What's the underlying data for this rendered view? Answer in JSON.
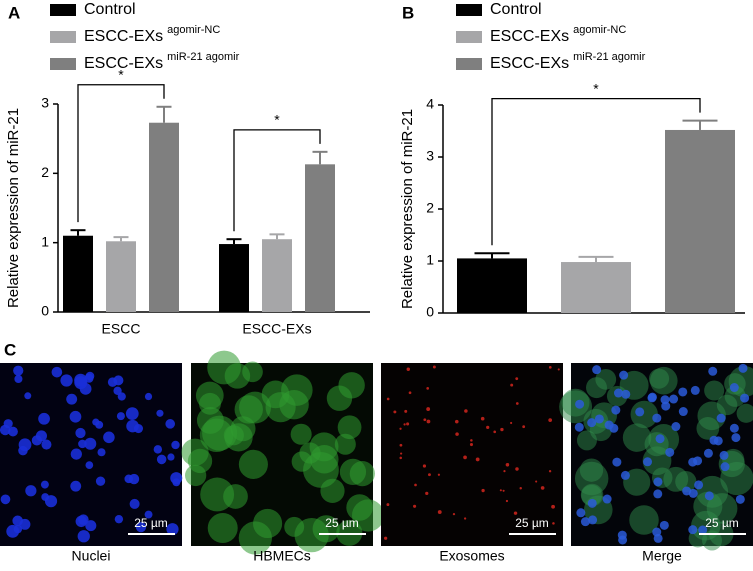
{
  "chart_data": [
    {
      "type": "bar",
      "panel": "A",
      "ylabel": "Relative expression of miR-21",
      "categories": [
        "ESCC",
        "ESCC-EXs"
      ],
      "series": [
        {
          "name": "Control",
          "color": "#000000",
          "values": [
            1.1,
            0.98
          ],
          "errors": [
            0.08,
            0.07
          ]
        },
        {
          "name": "ESCC-EXs",
          "superscript": "agomir-NC",
          "color": "#a6a6a8",
          "values": [
            1.02,
            1.05
          ],
          "errors": [
            0.06,
            0.07
          ]
        },
        {
          "name": "ESCC-EXs",
          "superscript": "miR-21 agomir",
          "color": "#7f7f7f",
          "values": [
            2.73,
            2.13
          ],
          "errors": [
            0.23,
            0.18
          ]
        }
      ],
      "ylim": [
        0,
        3
      ],
      "yticks": [
        0,
        1,
        2,
        3
      ],
      "annotations": [
        {
          "text": "*",
          "category": 0
        },
        {
          "text": "*",
          "category": 1
        }
      ]
    },
    {
      "type": "bar",
      "panel": "B",
      "ylabel": "Relative expression of miR-21",
      "categories": [
        null
      ],
      "series": [
        {
          "name": "Control",
          "color": "#000000",
          "values": [
            1.05
          ],
          "errors": [
            0.1
          ]
        },
        {
          "name": "ESCC-EXs",
          "superscript": "agomir-NC",
          "color": "#a6a6a8",
          "values": [
            0.98
          ],
          "errors": [
            0.1
          ]
        },
        {
          "name": "ESCC-EXs",
          "superscript": "miR-21 agomir",
          "color": "#7f7f7f",
          "values": [
            3.52
          ],
          "errors": [
            0.18
          ]
        }
      ],
      "ylim": [
        0,
        4
      ],
      "yticks": [
        0,
        1,
        2,
        3,
        4
      ],
      "annotations": [
        {
          "text": "*",
          "category": 0
        }
      ]
    }
  ],
  "panel_c": {
    "label": "C",
    "images": [
      {
        "caption": "Nuclei",
        "scale_bar": "25 µm"
      },
      {
        "caption": "HBMECs",
        "scale_bar": "25 µm"
      },
      {
        "caption": "Exosomes",
        "scale_bar": "25 µm"
      },
      {
        "caption": "Merge",
        "scale_bar": "25 µm"
      }
    ]
  }
}
